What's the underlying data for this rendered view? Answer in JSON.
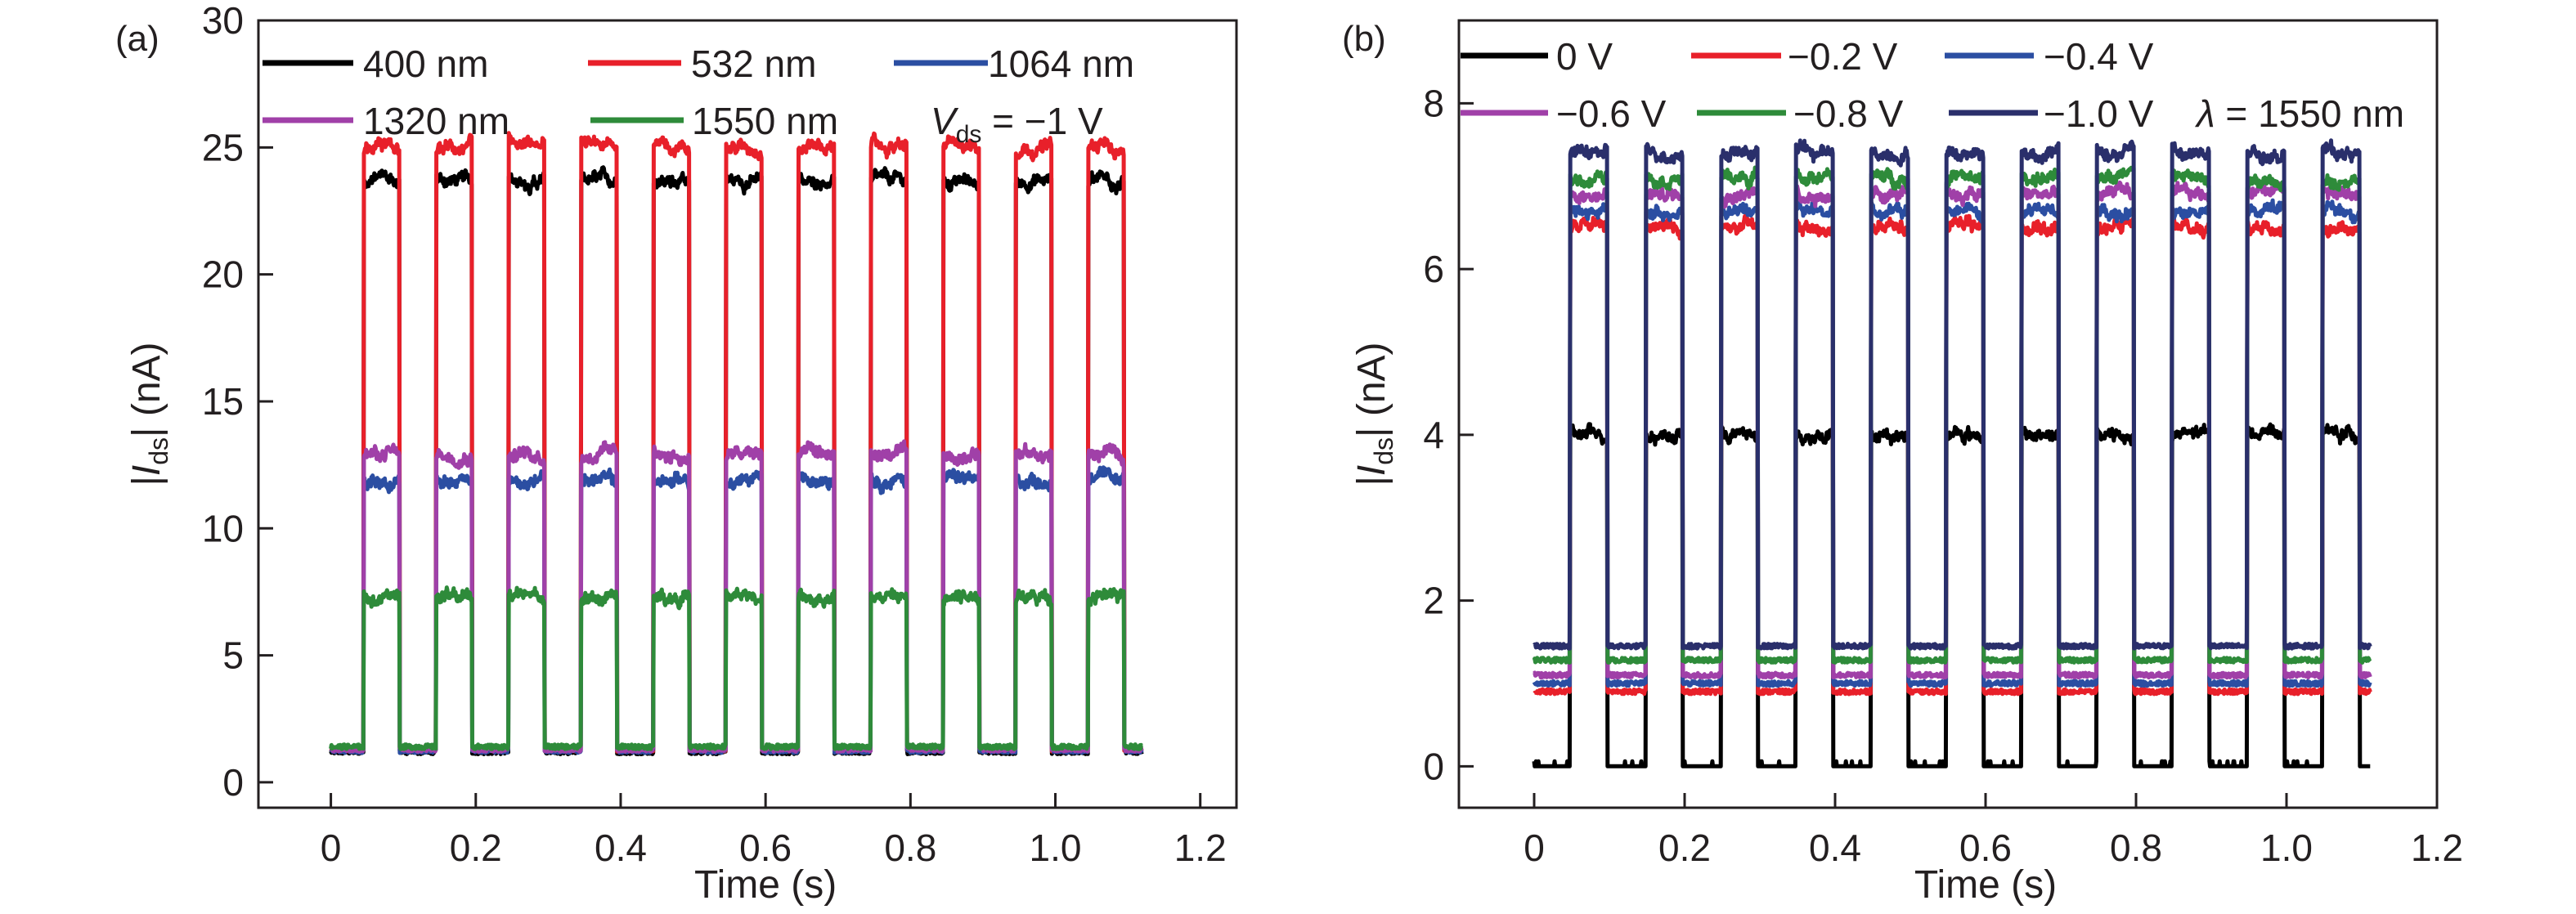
{
  "chart_data": [
    {
      "panel_label": "(a)",
      "type": "line",
      "xlabel": "Time (s)",
      "ylabel": {
        "prefix": "|",
        "var": "I",
        "sub": "ds",
        "suffix": "| (nA)"
      },
      "xlim": [
        -0.1,
        1.25
      ],
      "ylim": [
        -1,
        30
      ],
      "xticks": [
        0,
        0.2,
        0.4,
        0.6,
        0.8,
        1.0,
        1.2
      ],
      "xtick_labels": [
        "0",
        "0.2",
        "0.4",
        "0.6",
        "0.8",
        "1.0",
        "1.2"
      ],
      "yticks": [
        0,
        5,
        10,
        15,
        20,
        25,
        30
      ],
      "ytick_labels": [
        "0",
        "5",
        "10",
        "15",
        "20",
        "25",
        "30"
      ],
      "grid": false,
      "legend_placement": "top",
      "annotation": {
        "var": "V",
        "sub": "ds",
        "text": " = −1 V"
      },
      "time_range": [
        0,
        1.12
      ],
      "pulse_on_times": [
        0.045,
        0.145,
        0.245,
        0.345,
        0.445,
        0.545,
        0.645,
        0.745,
        0.845,
        0.945,
        1.045
      ],
      "pulse_width": 0.05,
      "series": [
        {
          "name": "400 nm",
          "color": "#000000",
          "off_level": 1.2,
          "on_level": 23.7
        },
        {
          "name": "532 nm",
          "color": "#e8202a",
          "off_level": 1.3,
          "on_level": 25.0
        },
        {
          "name": "1064 nm",
          "color": "#2b4ea2",
          "off_level": 1.25,
          "on_level": 11.9
        },
        {
          "name": "1320 nm",
          "color": "#a040a8",
          "off_level": 1.3,
          "on_level": 12.9
        },
        {
          "name": "1550 nm",
          "color": "#2e8b3a",
          "off_level": 1.4,
          "on_level": 7.3
        }
      ]
    },
    {
      "panel_label": "(b)",
      "type": "line",
      "xlabel": "Time (s)",
      "ylabel": {
        "prefix": "|",
        "var": "I",
        "sub": "ds",
        "suffix": "| (nA)"
      },
      "xlim": [
        -0.1,
        1.2
      ],
      "ylim": [
        -0.5,
        9
      ],
      "xticks": [
        0,
        0.2,
        0.4,
        0.6,
        0.8,
        1.0,
        1.2
      ],
      "xtick_labels": [
        "0",
        "0.2",
        "0.4",
        "0.6",
        "0.8",
        "1.0",
        "1.2"
      ],
      "yticks": [
        0,
        2,
        4,
        6,
        8
      ],
      "ytick_labels": [
        "0",
        "2",
        "4",
        "6",
        "8"
      ],
      "grid": false,
      "legend_placement": "top",
      "annotation": {
        "var": "λ",
        "sub": "",
        "text": " = 1550 nm"
      },
      "time_range": [
        0,
        1.112
      ],
      "pulse_on_times": [
        0.048,
        0.148,
        0.248,
        0.348,
        0.448,
        0.548,
        0.648,
        0.748,
        0.848,
        0.948,
        1.048
      ],
      "pulse_width": 0.049,
      "series": [
        {
          "name": "0 V",
          "color": "#000000",
          "off_level": 0.0,
          "on_level": 4.0
        },
        {
          "name": "−0.2 V",
          "color": "#e8202a",
          "off_level": 0.9,
          "on_level": 6.5
        },
        {
          "name": "−0.4 V",
          "color": "#2b4ea2",
          "off_level": 1.0,
          "on_level": 6.7
        },
        {
          "name": "−0.6 V",
          "color": "#a040a8",
          "off_level": 1.1,
          "on_level": 6.9
        },
        {
          "name": "−0.8 V",
          "color": "#2e8b3a",
          "off_level": 1.28,
          "on_level": 7.1
        },
        {
          "name": "−1.0 V",
          "color": "#2a2f6b",
          "off_level": 1.45,
          "on_level": 7.4
        }
      ]
    }
  ]
}
